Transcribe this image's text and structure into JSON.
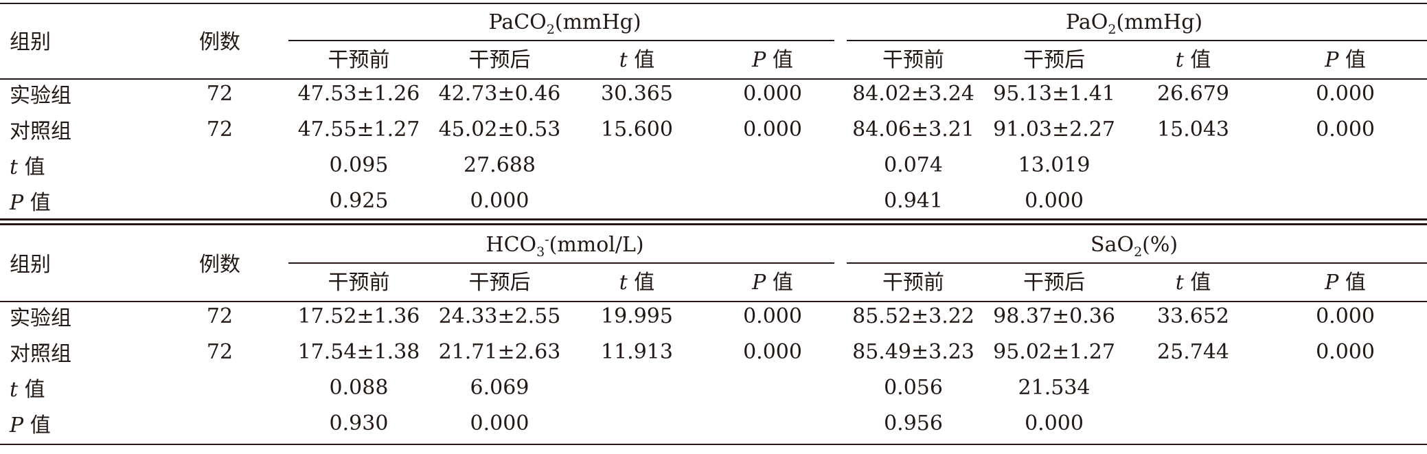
{
  "tables": [
    {
      "header": {
        "group_label": "组别",
        "count_label": "例数",
        "metric1": {
          "pre": "PaCO",
          "sub": "2",
          "post": "(mmHg)"
        },
        "metric2": {
          "pre": "PaO",
          "sub": "2",
          "post": "(mmHg)"
        },
        "sub_cols": {
          "before": "干预前",
          "after": "干预后",
          "t_sym": "t",
          "t_suffix": " 值",
          "p_sym": "P",
          "p_suffix": " 值"
        }
      },
      "rows": [
        {
          "group": "实验组",
          "n": "72",
          "m1_before": "47.53±1.26",
          "m1_after": "42.73±0.46",
          "m1_t": "30.365",
          "m1_p": "0.000",
          "m2_before": "84.02±3.24",
          "m2_after": "95.13±1.41",
          "m2_t": "26.679",
          "m2_p": "0.000"
        },
        {
          "group": "对照组",
          "n": "72",
          "m1_before": "47.55±1.27",
          "m1_after": "45.02±0.53",
          "m1_t": "15.600",
          "m1_p": "0.000",
          "m2_before": "84.06±3.21",
          "m2_after": "91.03±2.27",
          "m2_t": "15.043",
          "m2_p": "0.000"
        },
        {
          "sym": "t",
          "label_suffix": " 值",
          "m1_before": "0.095",
          "m1_after": "27.688",
          "m2_before": "0.074",
          "m2_after": "13.019"
        },
        {
          "sym": "P",
          "label_suffix": " 值",
          "m1_before": "0.925",
          "m1_after": "0.000",
          "m2_before": "0.941",
          "m2_after": "0.000"
        }
      ]
    },
    {
      "header": {
        "group_label": "组别",
        "count_label": "例数",
        "metric1": {
          "pre": "HCO",
          "sub": "3",
          "sup": "-",
          "post": "(mmol/L)"
        },
        "metric2": {
          "pre": "SaO",
          "sub": "2",
          "post": "(%)"
        },
        "sub_cols": {
          "before": "干预前",
          "after": "干预后",
          "t_sym": "t",
          "t_suffix": " 值",
          "p_sym": "P",
          "p_suffix": " 值"
        }
      },
      "rows": [
        {
          "group": "实验组",
          "n": "72",
          "m1_before": "17.52±1.36",
          "m1_after": "24.33±2.55",
          "m1_t": "19.995",
          "m1_p": "0.000",
          "m2_before": "85.52±3.22",
          "m2_after": "98.37±0.36",
          "m2_t": "33.652",
          "m2_p": "0.000"
        },
        {
          "group": "对照组",
          "n": "72",
          "m1_before": "17.54±1.38",
          "m1_after": "21.71±2.63",
          "m1_t": "11.913",
          "m1_p": "0.000",
          "m2_before": "85.49±3.23",
          "m2_after": "95.02±1.27",
          "m2_t": "25.744",
          "m2_p": "0.000"
        },
        {
          "sym": "t",
          "label_suffix": " 值",
          "m1_before": "0.088",
          "m1_after": "6.069",
          "m2_before": "0.056",
          "m2_after": "21.534"
        },
        {
          "sym": "P",
          "label_suffix": " 值",
          "m1_before": "0.930",
          "m1_after": "0.000",
          "m2_before": "0.956",
          "m2_after": "0.000"
        }
      ]
    }
  ]
}
